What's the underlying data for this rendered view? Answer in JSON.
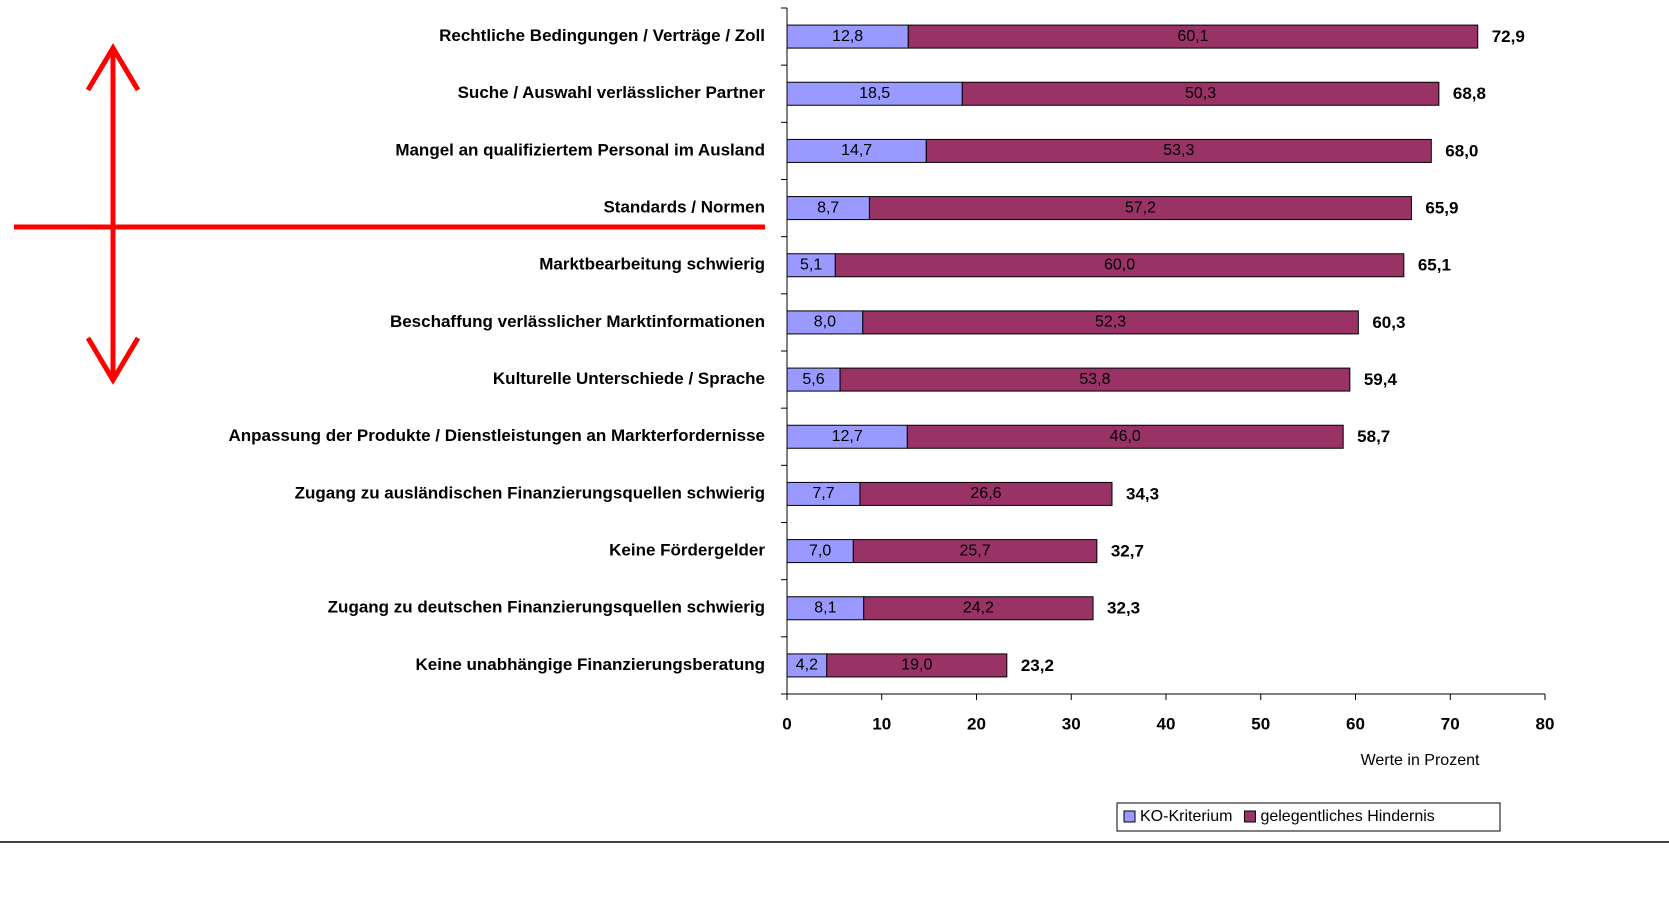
{
  "chart_data": {
    "type": "stacked-barh",
    "categories": [
      "Rechtliche Bedingungen / Verträge / Zoll",
      "Suche / Auswahl verlässlicher Partner",
      "Mangel an qualifiziertem Personal im Ausland",
      "Standards / Normen",
      "Marktbearbeitung schwierig",
      "Beschaffung verlässlicher Marktinformationen",
      "Kulturelle Unterschiede / Sprache",
      "Anpassung der Produkte / Dienstleistungen an Markterfordernisse",
      "Zugang zu ausländischen Finanzierungsquellen schwierig",
      "Keine Fördergelder",
      "Zugang zu deutschen Finanzierungsquellen schwierig",
      "Keine unabhängige Finanzierungsberatung"
    ],
    "series": [
      {
        "name": "KO-Kriterium",
        "color": "#9999ff",
        "values": [
          12.8,
          18.5,
          14.7,
          8.7,
          5.1,
          8.0,
          5.6,
          12.7,
          7.7,
          7.0,
          8.1,
          4.2
        ],
        "value_labels": [
          "12,8",
          "18,5",
          "14,7",
          "8,7",
          "5,1",
          "8,0",
          "5,6",
          "12,7",
          "7,7",
          "7,0",
          "8,1",
          "4,2"
        ]
      },
      {
        "name": "gelegentliches Hindernis",
        "color": "#993366",
        "values": [
          60.1,
          50.3,
          53.3,
          57.2,
          60.0,
          52.3,
          53.8,
          46.0,
          26.6,
          25.7,
          24.2,
          19.0
        ],
        "value_labels": [
          "60,1",
          "50,3",
          "53,3",
          "57,2",
          "60,0",
          "52,3",
          "53,8",
          "46,0",
          "26,6",
          "25,7",
          "24,2",
          "19,0"
        ]
      }
    ],
    "totals": {
      "values": [
        72.9,
        68.8,
        68.0,
        65.9,
        65.1,
        60.3,
        59.4,
        58.7,
        34.3,
        32.7,
        32.3,
        23.2
      ],
      "value_labels": [
        "72,9",
        "68,8",
        "68,0",
        "65,9",
        "65,1",
        "60,3",
        "59,4",
        "58,7",
        "34,3",
        "32,7",
        "32,3",
        "23,2"
      ]
    },
    "x_label": "Werte in Prozent",
    "xlim": [
      0,
      80
    ],
    "xticks": [
      0,
      10,
      20,
      30,
      40,
      50,
      60,
      70,
      80
    ]
  }
}
